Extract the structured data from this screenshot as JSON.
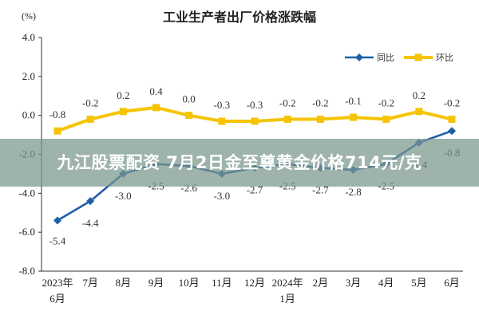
{
  "chart_data": {
    "type": "line",
    "title": "工业生产者出厂价格涨跌幅",
    "unit": "(%)",
    "ylim": [
      -8.0,
      4.0
    ],
    "yticks": [
      "4.0",
      "2.0",
      "0.0",
      "-2.0",
      "-4.0",
      "-6.0",
      "-8.0"
    ],
    "grid": false,
    "legend_position": "top-right",
    "categories": [
      [
        "2023年",
        "6月"
      ],
      [
        "7月"
      ],
      [
        "8月"
      ],
      [
        "9月"
      ],
      [
        "10月"
      ],
      [
        "11月"
      ],
      [
        "12月"
      ],
      [
        "2024年",
        "1月"
      ],
      [
        "2月"
      ],
      [
        "3月"
      ],
      [
        "4月"
      ],
      [
        "5月"
      ],
      [
        "6月"
      ]
    ],
    "series": [
      {
        "name": "同比",
        "color": "#1f5fa8",
        "values": [
          -5.4,
          -4.4,
          -3.0,
          -2.5,
          -2.6,
          -3.0,
          -2.7,
          -2.5,
          -2.7,
          -2.8,
          -2.5,
          -1.4,
          -0.8
        ],
        "labels": [
          "-5.4",
          "-4.4",
          "-3.0",
          "-2.5",
          "-2.6",
          "-3.0",
          "-2.7",
          "-2.5",
          "-2.7",
          "-2.8",
          "-2.5",
          "-1.4",
          "-0.8"
        ]
      },
      {
        "name": "环比",
        "color": "#f5c400",
        "values": [
          -0.8,
          -0.2,
          0.2,
          0.4,
          0.0,
          -0.3,
          -0.3,
          -0.2,
          -0.2,
          -0.1,
          -0.2,
          0.2,
          -0.2
        ],
        "labels": [
          "-0.8",
          "-0.2",
          "0.2",
          "0.4",
          "0.0",
          "-0.3",
          "-0.3",
          "-0.2",
          "-0.2",
          "-0.1",
          "-0.2",
          "0.2",
          "-0.2"
        ]
      }
    ]
  },
  "banner": {
    "text": "九江股票配资 7月2日金至尊黄金价格714元/克"
  }
}
